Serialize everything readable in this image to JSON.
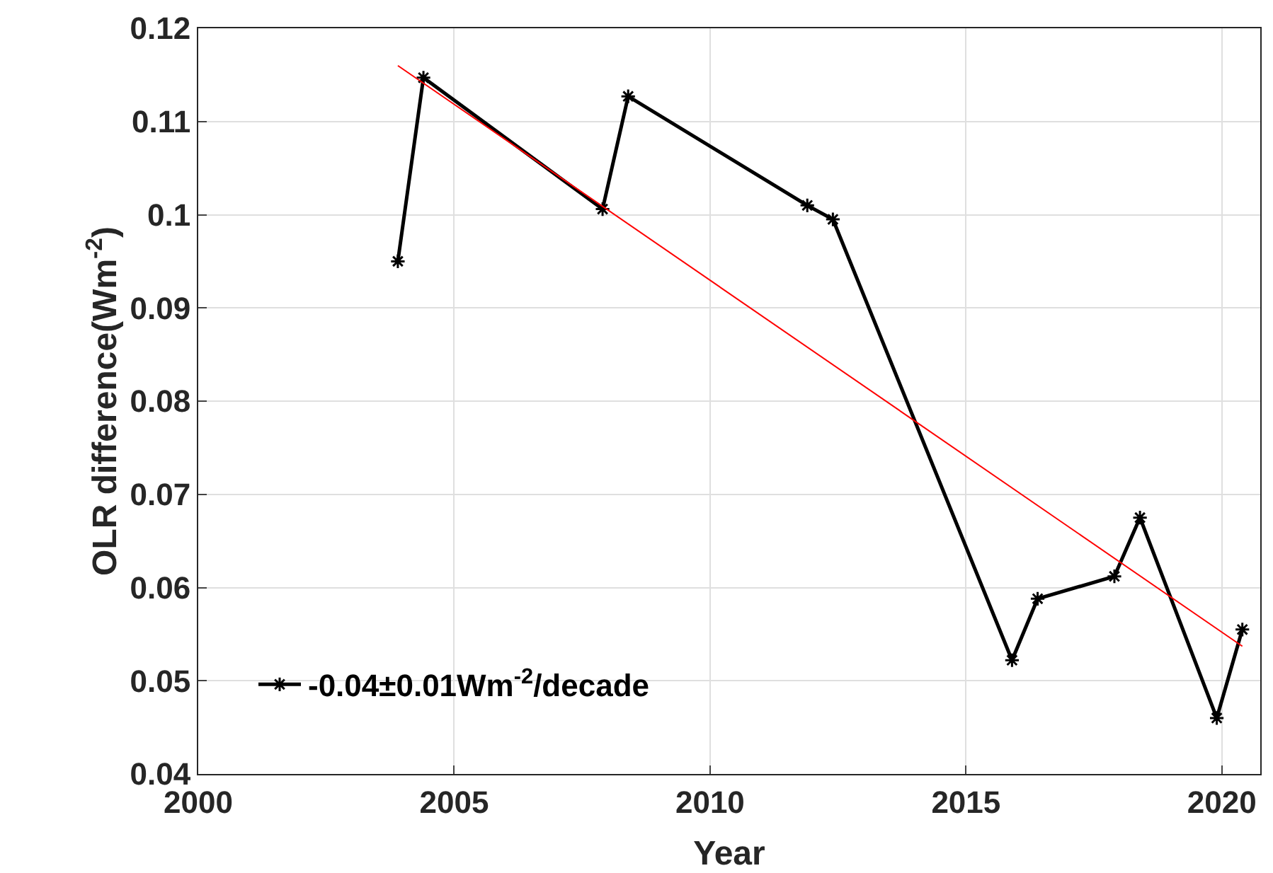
{
  "chart_data": {
    "type": "line",
    "xlabel": "Year",
    "ylabel": "OLR difference(Wm$^{-2}$)",
    "xlim": [
      2000,
      2020.75
    ],
    "xticks": [
      2000,
      2005,
      2010,
      2015,
      2020
    ],
    "ylim": [
      0.04,
      0.12
    ],
    "yticks": [
      0.04,
      0.05,
      0.06,
      0.07,
      0.08,
      0.09,
      0.1,
      0.11,
      0.12
    ],
    "grid": true,
    "legend": "bottom left",
    "marker": "cross",
    "line_style": "solid",
    "series": [
      {
        "name": "-0.04±0.01Wm$^{-2}$/decade",
        "color": "#000000",
        "x": [
          2003.9,
          2004.4,
          2007.9,
          2008.4,
          2011.9,
          2012.4,
          2015.9,
          2016.4,
          2017.9,
          2018.4,
          2019.9,
          2020.4
        ],
        "values": [
          0.095,
          0.1147,
          0.1006,
          0.1127,
          0.101,
          0.0995,
          0.0522,
          0.0588,
          0.0612,
          0.0675,
          0.046,
          0.0555
        ]
      },
      {
        "type": "line",
        "marker": "none",
        "color": "#ff0000",
        "x": [
          2003.9,
          2020.4
        ],
        "values": [
          0.116,
          0.0537
        ]
      }
    ]
  }
}
